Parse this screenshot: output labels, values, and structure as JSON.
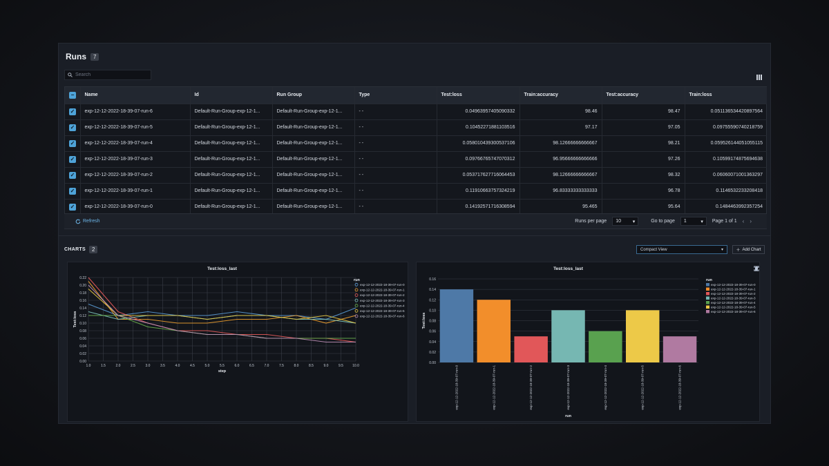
{
  "runs": {
    "title": "Runs",
    "count": "7",
    "search_placeholder": "Search"
  },
  "table": {
    "columns": [
      "Name",
      "Id",
      "Run Group",
      "Type",
      "Test:loss",
      "Train:accuracy",
      "Test:accuracy",
      "Train:loss"
    ],
    "rows": [
      [
        "exp-12-12-2022-18-39-07-run-6",
        "Default-Run-Group-exp-12-1...",
        "Default-Run-Group-exp-12-1...",
        "- -",
        "0.04963957405090332",
        "98.46",
        "98.47",
        "0.051136534420897564"
      ],
      [
        "exp-12-12-2022-18-39-07-run-5",
        "Default-Run-Group-exp-12-1...",
        "Default-Run-Group-exp-12-1...",
        "- -",
        "0.10452271881103516",
        "97.17",
        "97.05",
        "0.09755590740218759"
      ],
      [
        "exp-12-12-2022-18-39-07-run-4",
        "Default-Run-Group-exp-12-1...",
        "Default-Run-Group-exp-12-1...",
        "- -",
        "0.058010439300537106",
        "98.12666666666667",
        "98.21",
        "0.059526144051055115"
      ],
      [
        "exp-12-12-2022-18-39-07-run-3",
        "Default-Run-Group-exp-12-1...",
        "Default-Run-Group-exp-12-1...",
        "- -",
        "0.09766765747070312",
        "96.95666666666666",
        "97.26",
        "0.10599174875694638"
      ],
      [
        "exp-12-12-2022-18-39-07-run-2",
        "Default-Run-Group-exp-12-1...",
        "Default-Run-Group-exp-12-1...",
        "- -",
        "0.053717627716064453",
        "98.12666666666667",
        "98.32",
        "0.06060071001363297"
      ],
      [
        "exp-12-12-2022-18-39-07-run-1",
        "Default-Run-Group-exp-12-1...",
        "Default-Run-Group-exp-12-1...",
        "- -",
        "0.11910663757324219",
        "96.83333333333333",
        "96.78",
        "0.1146532233208418"
      ],
      [
        "exp-12-12-2022-18-39-07-run-0",
        "Default-Run-Group-exp-12-1...",
        "Default-Run-Group-exp-12-1...",
        "- -",
        "0.14192571716308594",
        "95.465",
        "95.64",
        "0.1484463992357254"
      ]
    ]
  },
  "pager": {
    "refresh": "Refresh",
    "runs_per_page_label": "Runs per page",
    "runs_per_page": "10",
    "go_to_page_label": "Go to page",
    "go_to_page": "1",
    "page_of": "Page 1 of 1"
  },
  "charts": {
    "title": "CHARTS",
    "count": "2",
    "view": "Compact View",
    "add_chart": "Add Chart"
  },
  "colors": {
    "accent": "#4ea3d8",
    "panel": "#1a1e26"
  },
  "chart_data": [
    {
      "type": "line",
      "title": "Test:loss_last",
      "xlabel": "step",
      "ylabel": "Test:loss",
      "legend_title": "run",
      "legend_position": "right",
      "grid": true,
      "xlim": [
        1,
        10
      ],
      "ylim": [
        0,
        0.22
      ],
      "xticks": [
        "1.0",
        "1.5",
        "2.0",
        "2.5",
        "3.0",
        "3.5",
        "4.0",
        "4.5",
        "5.0",
        "5.5",
        "6.0",
        "6.5",
        "7.0",
        "7.5",
        "8.0",
        "8.5",
        "9.0",
        "9.5",
        "10.0"
      ],
      "yticks": [
        "0.00",
        "0.02",
        "0.04",
        "0.06",
        "0.08",
        "0.10",
        "0.12",
        "0.14",
        "0.16",
        "0.18",
        "0.20",
        "0.22"
      ],
      "x": [
        1,
        2,
        3,
        4,
        5,
        6,
        7,
        8,
        9,
        10
      ],
      "series": [
        {
          "name": "exp-12-12-2022-18-39-07-run-0",
          "color": "#5b9bd5",
          "values": [
            0.15,
            0.12,
            0.13,
            0.12,
            0.12,
            0.13,
            0.12,
            0.12,
            0.11,
            0.14
          ]
        },
        {
          "name": "exp-12-12-2022-18-39-07-run-1",
          "color": "#f0a030",
          "values": [
            0.21,
            0.11,
            0.11,
            0.1,
            0.1,
            0.11,
            0.11,
            0.12,
            0.1,
            0.12
          ]
        },
        {
          "name": "exp-12-12-2022-18-39-07-run-2",
          "color": "#e85a5a",
          "values": [
            0.22,
            0.13,
            0.1,
            0.08,
            0.08,
            0.07,
            0.07,
            0.06,
            0.06,
            0.05
          ]
        },
        {
          "name": "exp-12-12-2022-18-39-07-run-3",
          "color": "#7fc8c0",
          "values": [
            0.13,
            0.11,
            0.12,
            0.12,
            0.11,
            0.12,
            0.12,
            0.11,
            0.11,
            0.1
          ]
        },
        {
          "name": "exp-12-12-2022-18-39-07-run-4",
          "color": "#6ab04c",
          "values": [
            0.12,
            0.12,
            0.09,
            0.08,
            0.07,
            0.07,
            0.06,
            0.06,
            0.06,
            0.06
          ]
        },
        {
          "name": "exp-12-12-2022-18-39-07-run-5",
          "color": "#e8c840",
          "values": [
            0.19,
            0.12,
            0.12,
            0.12,
            0.11,
            0.12,
            0.12,
            0.11,
            0.12,
            0.1
          ]
        },
        {
          "name": "exp-12-12-2022-18-39-07-run-6",
          "color": "#c090b8",
          "values": [
            0.2,
            0.12,
            0.1,
            0.08,
            0.07,
            0.07,
            0.06,
            0.06,
            0.05,
            0.05
          ]
        }
      ]
    },
    {
      "type": "bar",
      "title": "Test:loss_last",
      "xlabel": "run",
      "ylabel": "Test:loss",
      "legend_title": "run",
      "legend_position": "right",
      "grid": true,
      "ylim": [
        0,
        0.16
      ],
      "yticks": [
        "0.00",
        "0.02",
        "0.04",
        "0.06",
        "0.08",
        "0.10",
        "0.12",
        "0.14",
        "0.16"
      ],
      "categories": [
        "exp-12-12-2022-18-39-07-run-0",
        "exp-12-12-2022-18-39-07-run-1",
        "exp-12-12-2022-18-39-07-run-2",
        "exp-12-12-2022-18-39-07-run-3",
        "exp-12-12-2022-18-39-07-run-4",
        "exp-12-12-2022-18-39-07-run-5",
        "exp-12-12-2022-18-39-07-run-6"
      ],
      "values": [
        0.14,
        0.12,
        0.05,
        0.1,
        0.06,
        0.1,
        0.05
      ],
      "colors": [
        "#4e79a7",
        "#f28e2b",
        "#e15759",
        "#76b7b2",
        "#59a14f",
        "#edc948",
        "#b07aa1"
      ]
    }
  ]
}
